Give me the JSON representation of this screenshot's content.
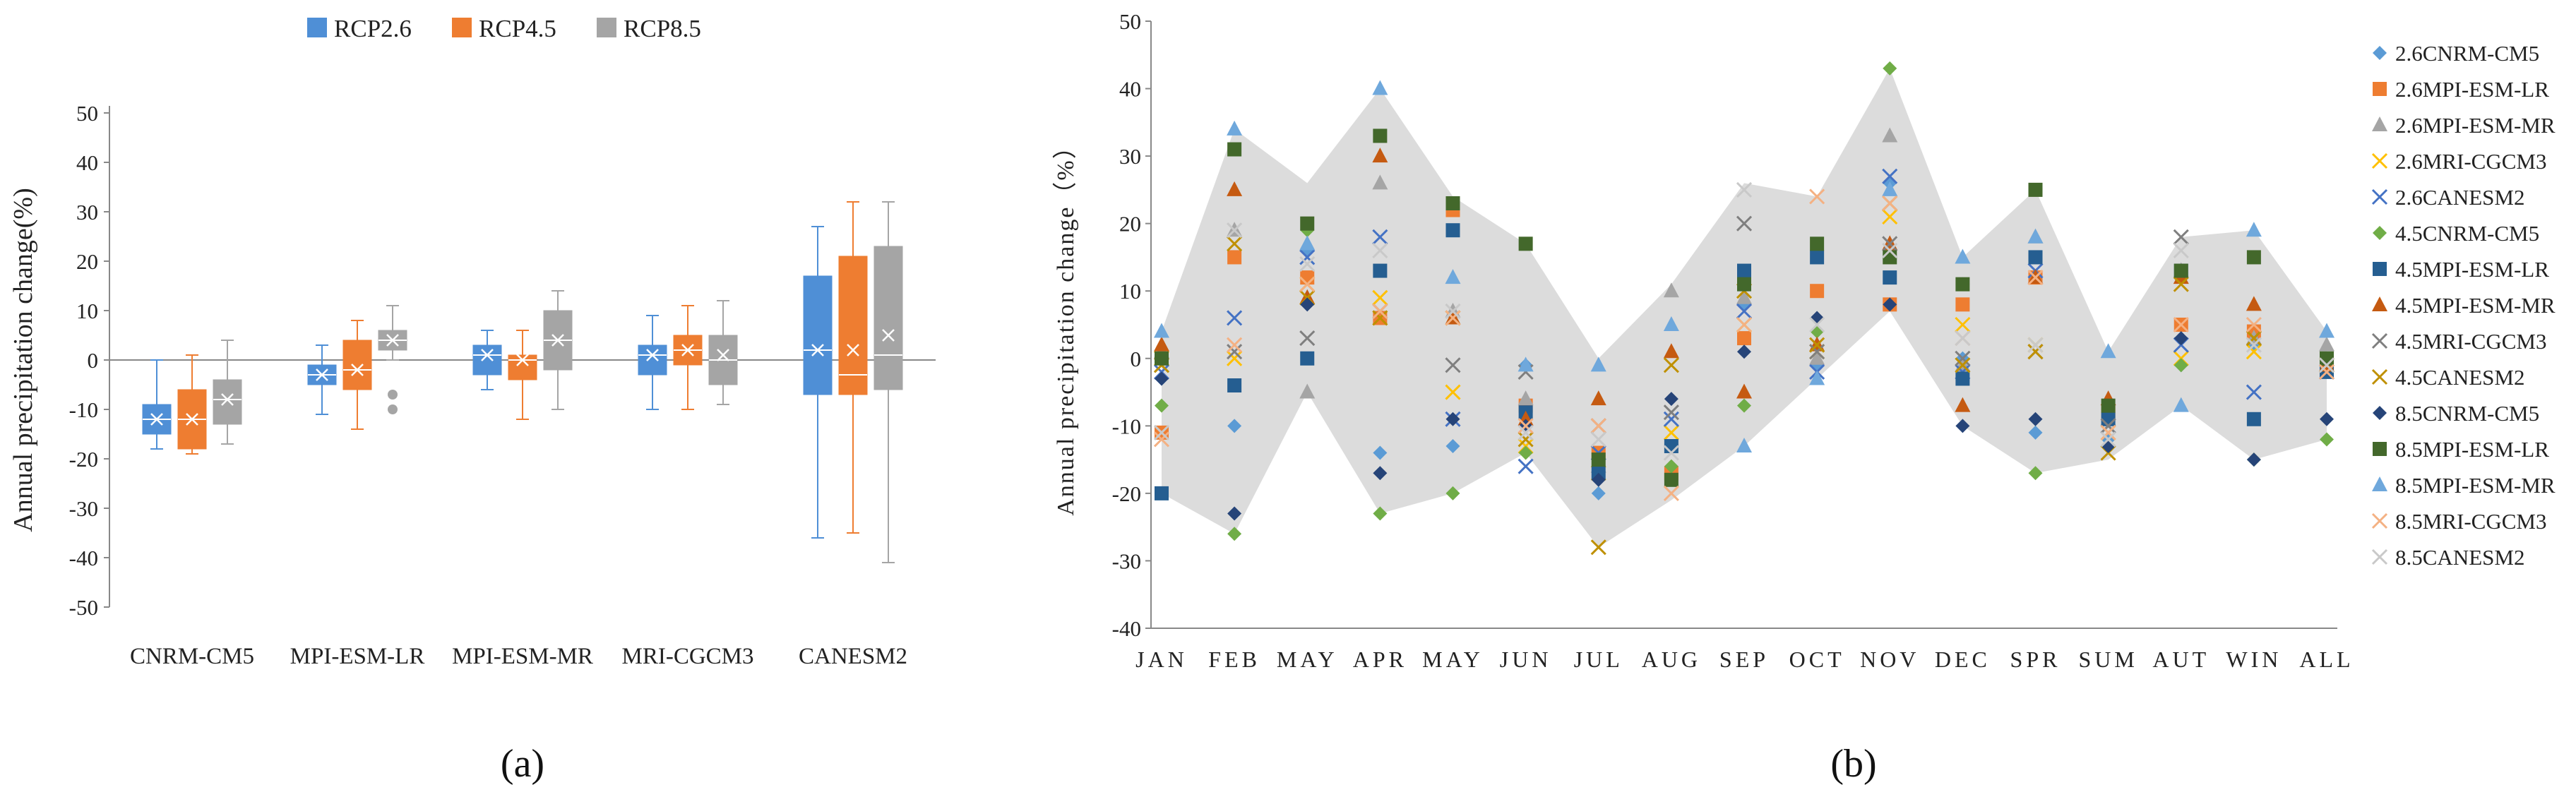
{
  "chart_data": [
    {
      "panel": "a",
      "panel_label": "(a)",
      "type": "boxplot",
      "ylabel": "Annual precipitation change(%)",
      "ylim": [
        -50,
        50
      ],
      "yticks": [
        -50,
        -40,
        -30,
        -20,
        -10,
        0,
        10,
        20,
        30,
        40,
        50
      ],
      "categories": [
        "CNRM-CM5",
        "MPI-ESM-LR",
        "MPI-ESM-MR",
        "MRI-CGCM3",
        "CANESM2"
      ],
      "legend_position": "top",
      "series": [
        {
          "name": "RCP2.6",
          "color": "#4f8fd6",
          "boxes": [
            {
              "min": -18,
              "q1": -15,
              "median": -12,
              "mean": -12,
              "q3": -9,
              "max": 0,
              "outliers": []
            },
            {
              "min": -11,
              "q1": -5,
              "median": -3,
              "mean": -3,
              "q3": -1,
              "max": 3,
              "outliers": []
            },
            {
              "min": -6,
              "q1": -3,
              "median": 1,
              "mean": 1,
              "q3": 3,
              "max": 6,
              "outliers": []
            },
            {
              "min": -10,
              "q1": -3,
              "median": 1,
              "mean": 1,
              "q3": 3,
              "max": 9,
              "outliers": []
            },
            {
              "min": -36,
              "q1": -7,
              "median": 2,
              "mean": 2,
              "q3": 17,
              "max": 27,
              "outliers": []
            }
          ]
        },
        {
          "name": "RCP4.5",
          "color": "#ee7d31",
          "boxes": [
            {
              "min": -19,
              "q1": -18,
              "median": -12,
              "mean": -12,
              "q3": -6,
              "max": 1,
              "outliers": []
            },
            {
              "min": -14,
              "q1": -6,
              "median": -2,
              "mean": -2,
              "q3": 4,
              "max": 8,
              "outliers": []
            },
            {
              "min": -12,
              "q1": -4,
              "median": 0,
              "mean": 0,
              "q3": 1,
              "max": 6,
              "outliers": []
            },
            {
              "min": -10,
              "q1": -1,
              "median": 2,
              "mean": 2,
              "q3": 5,
              "max": 11,
              "outliers": []
            },
            {
              "min": -35,
              "q1": -7,
              "median": -3,
              "mean": 2,
              "q3": 21,
              "max": 32,
              "outliers": []
            }
          ]
        },
        {
          "name": "RCP8.5",
          "color": "#a5a5a5",
          "boxes": [
            {
              "min": -17,
              "q1": -13,
              "median": -8,
              "mean": -8,
              "q3": -4,
              "max": 4,
              "outliers": []
            },
            {
              "min": 0,
              "q1": 2,
              "median": 4,
              "mean": 4,
              "q3": 6,
              "max": 11,
              "outliers": [
                -7,
                -10
              ]
            },
            {
              "min": -10,
              "q1": -2,
              "median": 4,
              "mean": 4,
              "q3": 10,
              "max": 14,
              "outliers": []
            },
            {
              "min": -9,
              "q1": -5,
              "median": 0,
              "mean": 1,
              "q3": 5,
              "max": 12,
              "outliers": []
            },
            {
              "min": -41,
              "q1": -6,
              "median": 1,
              "mean": 5,
              "q3": 23,
              "max": 32,
              "outliers": []
            }
          ]
        }
      ]
    },
    {
      "panel": "b",
      "panel_label": "(b)",
      "type": "scatter",
      "ylabel": "Annual precipitation change（%）",
      "ylim": [
        -40,
        50
      ],
      "yticks": [
        -40,
        -30,
        -20,
        -10,
        0,
        10,
        20,
        30,
        40,
        50
      ],
      "categories": [
        "JAN",
        "FEB",
        "MAY",
        "APR",
        "MAY",
        "JUN",
        "JUL",
        "AUG",
        "SEP",
        "OCT",
        "NOV",
        "DEC",
        "SPR",
        "SUM",
        "AUT",
        "WIN",
        "ALL"
      ],
      "legend_position": "right",
      "envelope_color": "#dcdcdc",
      "envelope": {
        "upper": [
          4,
          34,
          26,
          40,
          24,
          17,
          0,
          11,
          26,
          24,
          43,
          15,
          25,
          1,
          18,
          19,
          4
        ],
        "lower": [
          -20,
          -26,
          -5,
          -23,
          -20,
          -14,
          -28,
          -21,
          -13,
          -3,
          7,
          -10,
          -17,
          -15,
          -7,
          -15,
          -12
        ]
      },
      "series": [
        {
          "name": "2.6CNRM-CM5",
          "marker": "diamond",
          "color": "#5b9bd5",
          "values": [
            -3,
            -10,
            16,
            -14,
            -13,
            -1,
            -20,
            -13,
            8,
            -1,
            26,
            0,
            -11,
            -12,
            -1,
            2,
            -2
          ]
        },
        {
          "name": "2.6MPI-ESM-LR",
          "marker": "square",
          "color": "#ee7d31",
          "values": [
            -11,
            15,
            12,
            6,
            22,
            -7,
            -14,
            -17,
            3,
            10,
            8,
            8,
            12,
            -8,
            5,
            4,
            -1
          ]
        },
        {
          "name": "2.6MPI-ESM-MR",
          "marker": "triangle",
          "color": "#a5a5a5",
          "values": [
            1,
            19,
            -5,
            26,
            7,
            -6,
            -16,
            10,
            9,
            0,
            33,
            -1,
            18,
            -9,
            13,
            3,
            2
          ]
        },
        {
          "name": "2.6MRI-CGCM3",
          "marker": "x",
          "color": "#ffc000",
          "values": [
            0,
            0,
            11,
            9,
            -5,
            -13,
            -17,
            -11,
            5,
            1,
            21,
            5,
            2,
            -11,
            0,
            1,
            -1
          ]
        },
        {
          "name": "2.6CANESM2",
          "marker": "x",
          "color": "#4472c4",
          "values": [
            -2,
            6,
            15,
            18,
            -9,
            -16,
            -14,
            -9,
            7,
            -2,
            27,
            -2,
            13,
            -10,
            2,
            -5,
            -2
          ]
        },
        {
          "name": "4.5CNRM-CM5",
          "marker": "diamond",
          "color": "#70ad47",
          "values": [
            -7,
            -26,
            19,
            -23,
            -20,
            -14,
            -15,
            -16,
            -7,
            4,
            43,
            11,
            -17,
            -7,
            -1,
            -15,
            -12
          ]
        },
        {
          "name": "4.5MPI-ESM-LR",
          "marker": "square",
          "color": "#255e91",
          "values": [
            -20,
            -4,
            0,
            13,
            19,
            -8,
            -17,
            -13,
            13,
            15,
            12,
            -3,
            15,
            -9,
            13,
            -9,
            -2
          ]
        },
        {
          "name": "4.5MPI-ESM-MR",
          "marker": "triangle",
          "color": "#c55a11",
          "values": [
            2,
            25,
            9,
            30,
            6,
            -9,
            -6,
            1,
            -5,
            2,
            17,
            -7,
            12,
            -6,
            12,
            8,
            -1
          ]
        },
        {
          "name": "4.5MRI-CGCM3",
          "marker": "x",
          "color": "#7f7f7f",
          "values": [
            -1,
            1,
            3,
            7,
            -1,
            -2,
            -10,
            -8,
            20,
            1,
            17,
            0,
            1,
            -10,
            18,
            3,
            -1
          ]
        },
        {
          "name": "4.5CANESM2",
          "marker": "x",
          "color": "#bf9000",
          "values": [
            -1,
            17,
            9,
            6,
            6,
            -12,
            -28,
            -1,
            10,
            2,
            23,
            -1,
            1,
            -14,
            11,
            3,
            -1
          ]
        },
        {
          "name": "8.5CNRM-CM5",
          "marker": "diamond",
          "color": "#264478",
          "values": [
            -3,
            -23,
            8,
            -17,
            -9,
            -10,
            -18,
            -6,
            1,
            6,
            8,
            -10,
            -9,
            -13,
            3,
            -15,
            -9
          ]
        },
        {
          "name": "8.5MPI-ESM-LR",
          "marker": "square",
          "color": "#43682b",
          "values": [
            0,
            31,
            20,
            33,
            23,
            17,
            -15,
            -18,
            11,
            17,
            15,
            11,
            25,
            -7,
            13,
            15,
            0
          ]
        },
        {
          "name": "8.5MPI-ESM-MR",
          "marker": "triangle",
          "color": "#6fa8dc",
          "values": [
            4,
            34,
            17,
            40,
            12,
            -1,
            -1,
            5,
            -13,
            -3,
            25,
            15,
            18,
            1,
            -7,
            19,
            4
          ]
        },
        {
          "name": "8.5MRI-CGCM3",
          "marker": "x",
          "color": "#f4b183",
          "values": [
            -12,
            2,
            11,
            7,
            6,
            -10,
            -10,
            -20,
            5,
            24,
            23,
            3,
            12,
            -11,
            5,
            5,
            -2
          ]
        },
        {
          "name": "8.5CANESM2",
          "marker": "x",
          "color": "#c9c9c9",
          "values": [
            -11,
            19,
            14,
            16,
            7,
            -11,
            -12,
            -14,
            25,
            5,
            16,
            3,
            2,
            -12,
            16,
            2,
            -1
          ]
        }
      ]
    }
  ]
}
